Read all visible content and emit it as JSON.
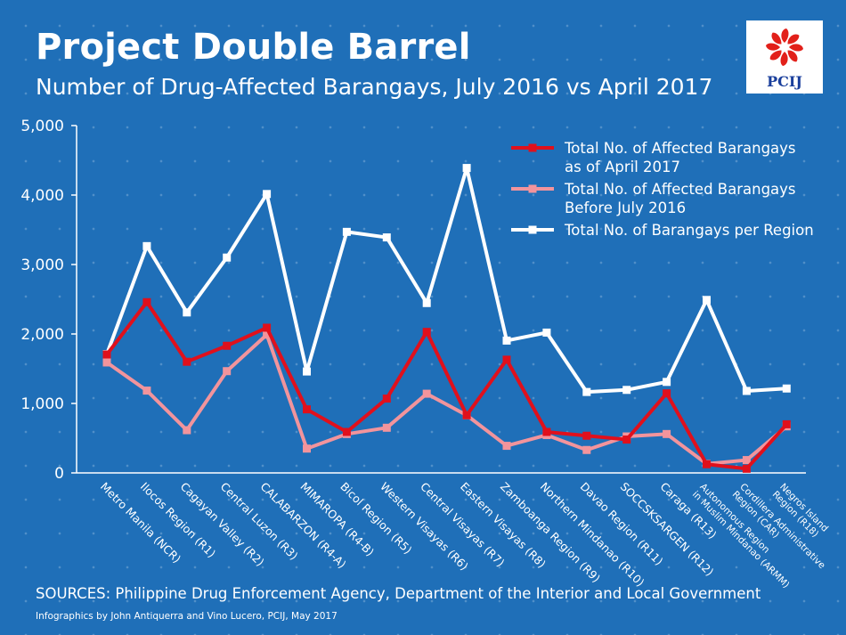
{
  "header": {
    "title": "Project Double Barrel",
    "subtitle": "Number of Drug-Affected Barangays, July 2016 vs April 2017"
  },
  "logo": {
    "text": "PCIJ",
    "icon": "pcij-flower-logo",
    "color": "#e2201a"
  },
  "footer": {
    "sources": "SOURCES: Philippine Drug Enforcement Agency, Department of the Interior and Local Government",
    "credits": "Infographics by John Antiquerra and Vino Lucero, PCIJ, May 2017"
  },
  "chart_data": {
    "type": "line",
    "categories": [
      "Metro Manila (NCR)",
      "Ilocos Region (R1)",
      "Cagayan Valley (R2)",
      "Central Luzon (R3)",
      "CALABARZON (R4-A)",
      "MIMAROPA (R4-B)",
      "Bicol Region (R5)",
      "Western Visayas (R6)",
      "Central Visayas (R7)",
      "Eastern Visayas (R8)",
      "Zamboanga Region (R9)",
      "Northern Mindanao (R10)",
      "Davao Region (R11)",
      "SOCCSKSARGEN (R12)",
      "Caraga (R13)",
      "Autonomous Region|in Muslim Mindanao (ARMM)",
      "Cordillera Administrative|Region (CAR)",
      "Negros Island|Region (R18)"
    ],
    "series": [
      {
        "name": "Total No. of Affected Barangays|as of April 2017",
        "color": "#e0101c",
        "values": [
          1705,
          2458,
          1600,
          1830,
          2090,
          915,
          590,
          1070,
          2030,
          830,
          1630,
          590,
          535,
          480,
          1145,
          125,
          60,
          700
        ]
      },
      {
        "name": "Total No. of Affected Barangays|Before July 2016",
        "color": "#f2949c",
        "values": [
          1590,
          1185,
          615,
          1465,
          1990,
          350,
          560,
          650,
          1140,
          830,
          390,
          545,
          330,
          525,
          560,
          130,
          185,
          670
        ]
      },
      {
        "name": "Total No. of Barangays per Region",
        "color": "#ffffff",
        "values": [
          1710,
          3265,
          2310,
          3100,
          4015,
          1460,
          3470,
          3390,
          2445,
          4390,
          1905,
          2020,
          1165,
          1195,
          1310,
          2490,
          1180,
          1215
        ]
      }
    ],
    "yticks": [
      "0",
      "1,000",
      "2,000",
      "3,000",
      "4,000",
      "5,000"
    ],
    "ylim": [
      0,
      5000
    ],
    "grid": false,
    "legend": "top-right"
  }
}
